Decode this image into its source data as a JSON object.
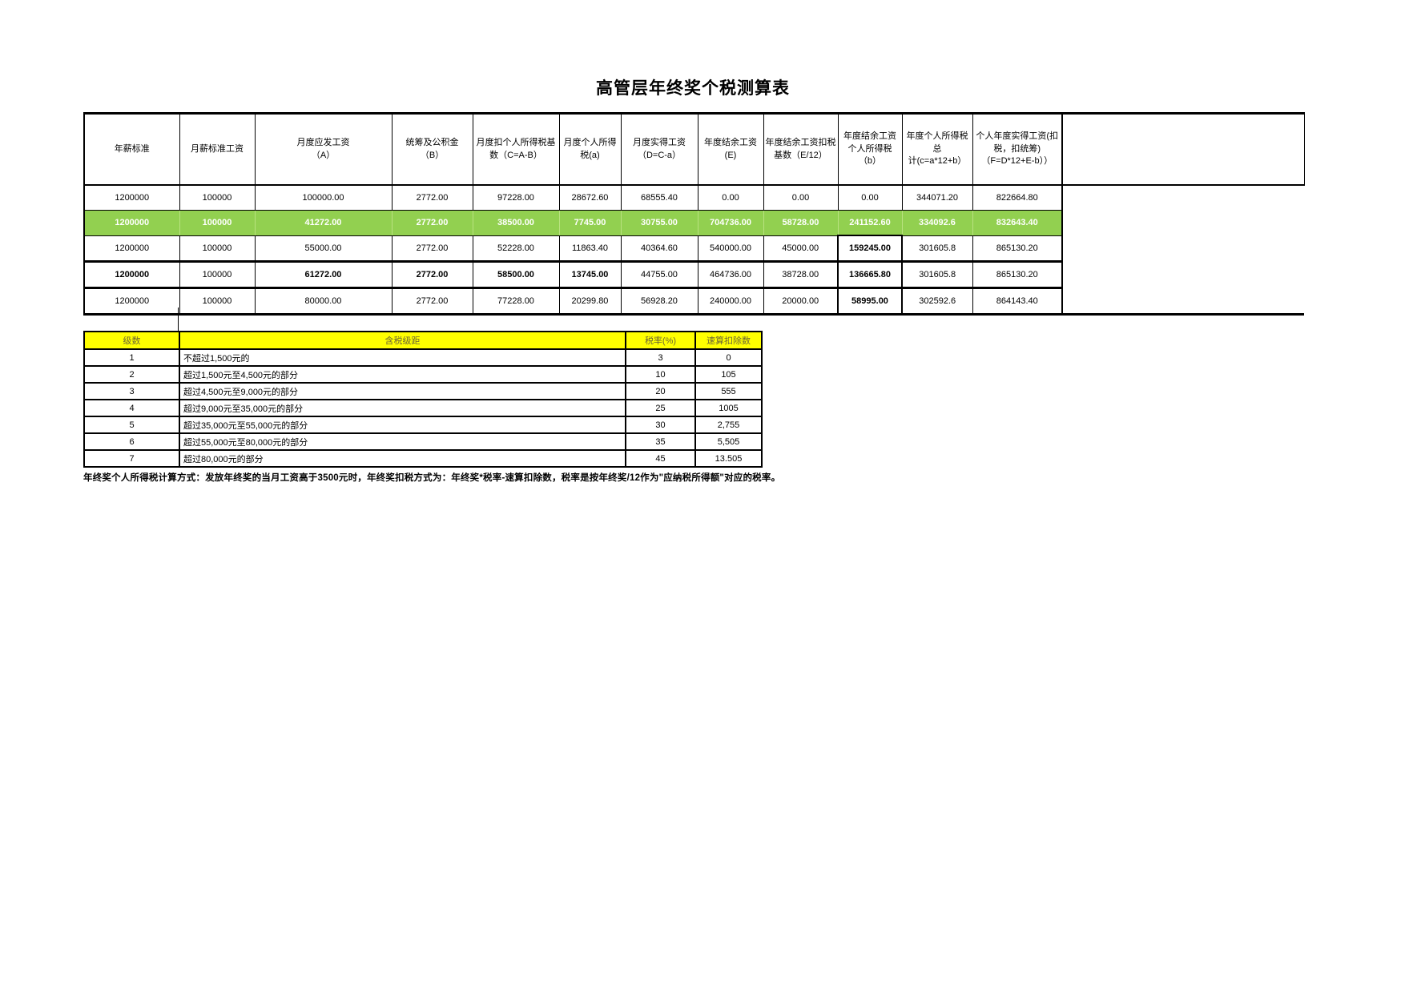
{
  "page": {
    "title": "高管层年终奖个税测算表",
    "note": "年终奖个人所得税计算方式：发放年终奖的当月工资高于3500元时，年终奖扣税方式为：年终奖*税率-速算扣除数，税率是按年终奖/12作为\"应纳税所得额\"对应的税率。"
  },
  "colors": {
    "highlight_green": "#92D050",
    "header_yellow": "#FFFF00",
    "tax_header_text": "#6b6536",
    "border_black": "#000000"
  },
  "main_table": {
    "headers": [
      "年薪标准",
      "月薪标准工资",
      "月度应发工资\n（A）",
      "统筹及公积金\n（B）",
      "月度扣个人所得税基\n数（C=A-B）",
      "月度个人所得\n税(a)",
      "月度实得工资\n（D=C-a）",
      "年度结余工资\n(E)",
      "年度结余工资扣税\n基数（E/12）",
      "年度结余工资\n个人所得税\n（b）",
      "年度个人所得税总\n计(c=a*12+b）",
      "个人年度实得工资(扣\n税，扣统筹)\n（F=D*12+E-b））"
    ],
    "rows": [
      {
        "cells": [
          "1200000",
          "100000",
          "100000.00",
          "2772.00",
          "97228.00",
          "28672.60",
          "68555.40",
          "0.00",
          "0.00",
          "0.00",
          "344071.20",
          "822664.80"
        ],
        "highlight": false,
        "outline": false,
        "bold_cols": [],
        "box_cols": []
      },
      {
        "cells": [
          "1200000",
          "100000",
          "41272.00",
          "2772.00",
          "38500.00",
          "7745.00",
          "30755.00",
          "704736.00",
          "58728.00",
          "241152.60",
          "334092.6",
          "832643.40"
        ],
        "highlight": true,
        "outline": false,
        "bold_cols": "all",
        "box_cols": []
      },
      {
        "cells": [
          "1200000",
          "100000",
          "55000.00",
          "2772.00",
          "52228.00",
          "11863.40",
          "40364.60",
          "540000.00",
          "45000.00",
          "159245.00",
          "301605.8",
          "865130.20"
        ],
        "highlight": false,
        "outline": false,
        "bold_cols": [
          9
        ],
        "box_cols": [
          9
        ]
      },
      {
        "cells": [
          "1200000",
          "100000",
          "61272.00",
          "2772.00",
          "58500.00",
          "13745.00",
          "44755.00",
          "464736.00",
          "38728.00",
          "136665.80",
          "301605.8",
          "865130.20"
        ],
        "highlight": false,
        "outline": true,
        "bold_cols": [
          0,
          2,
          3,
          4,
          5,
          9
        ],
        "box_cols": [
          9
        ]
      },
      {
        "cells": [
          "1200000",
          "100000",
          "80000.00",
          "2772.00",
          "77228.00",
          "20299.80",
          "56928.20",
          "240000.00",
          "20000.00",
          "58995.00",
          "302592.6",
          "864143.40"
        ],
        "highlight": false,
        "outline": false,
        "bold_cols": [
          9
        ],
        "box_cols": [
          9
        ]
      }
    ]
  },
  "tax_table": {
    "headers": [
      "级数",
      "含税级距",
      "税率(%)",
      "速算扣除数"
    ],
    "rows": [
      [
        "1",
        "不超过1,500元的",
        "3",
        "0"
      ],
      [
        "2",
        "超过1,500元至4,500元的部分",
        "10",
        "105"
      ],
      [
        "3",
        "超过4,500元至9,000元的部分",
        "20",
        "555"
      ],
      [
        "4",
        "超过9,000元至35,000元的部分",
        "25",
        "1005"
      ],
      [
        "5",
        "超过35,000元至55,000元的部分",
        "30",
        "2,755"
      ],
      [
        "6",
        "超过55,000元至80,000元的部分",
        "35",
        "5,505"
      ],
      [
        "7",
        "超过80,000元的部分",
        "45",
        "13.505"
      ]
    ]
  }
}
